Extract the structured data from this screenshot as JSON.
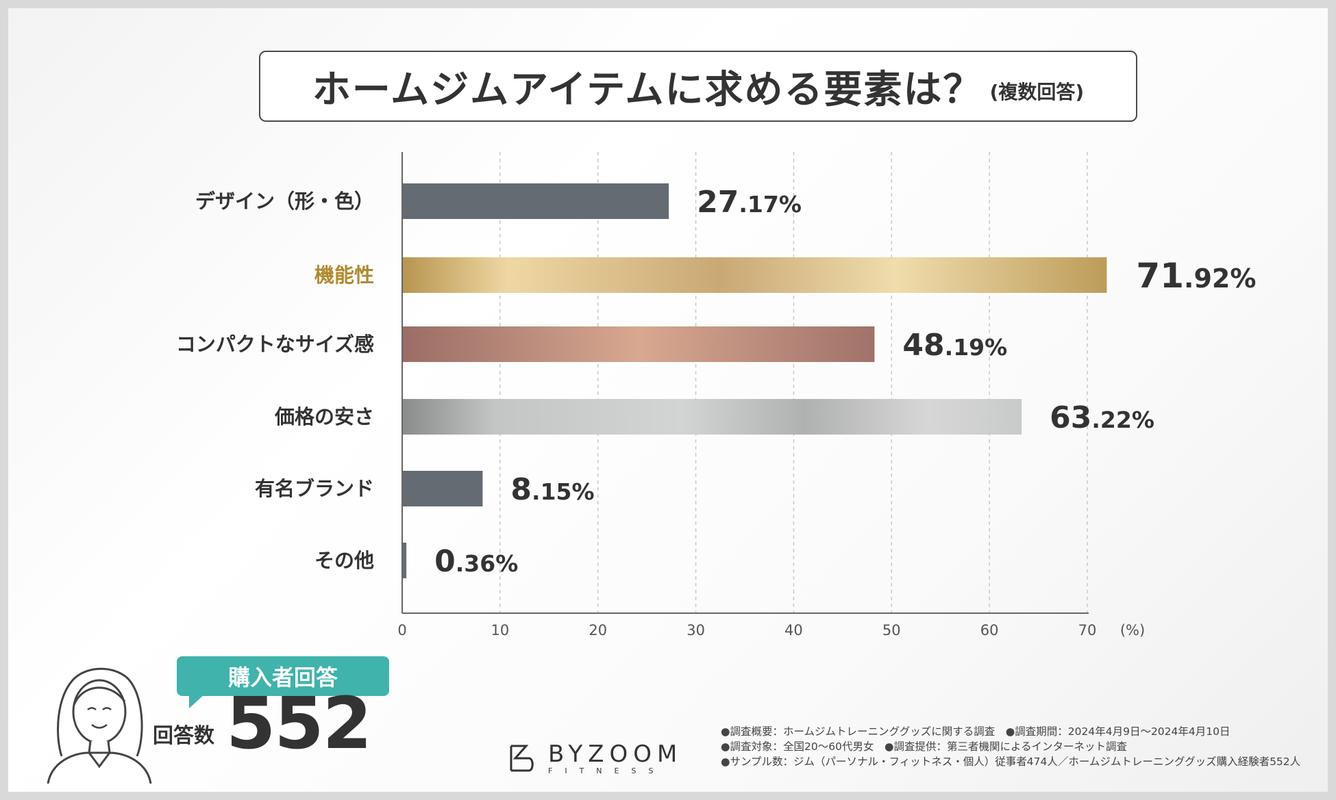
{
  "title": {
    "main": "ホームジムアイテムに求める要素は？",
    "sub": "(複数回答)"
  },
  "chart_data": {
    "type": "bar",
    "orientation": "horizontal",
    "categories": [
      "デザイン（形・色）",
      "機能性",
      "コンパクトなサイズ感",
      "価格の安さ",
      "有名ブランド",
      "その他"
    ],
    "values": [
      27.17,
      71.92,
      48.19,
      63.22,
      8.15,
      0.36
    ],
    "value_labels": [
      {
        "int": "27",
        "dec": ".17%"
      },
      {
        "int": "71",
        "dec": ".92%"
      },
      {
        "int": "48",
        "dec": ".19%"
      },
      {
        "int": "63",
        "dec": ".22%"
      },
      {
        "int": "8",
        "dec": ".15%"
      },
      {
        "int": "0",
        "dec": ".36%"
      }
    ],
    "highlight_index": 1,
    "bar_styles": [
      "slate",
      "gold",
      "rose",
      "silver",
      "slate",
      "slate"
    ],
    "x_ticks": [
      0,
      10,
      20,
      30,
      40,
      50,
      60,
      70
    ],
    "x_unit": "(%)",
    "xlim": [
      0,
      70
    ],
    "grid": "vertical-dashed"
  },
  "colors": {
    "slate": "#646b72",
    "gold_light": "#efd7a3",
    "gold_dark": "#bd9c5a",
    "rose_light": "#d8a890",
    "rose_dark": "#a0726a",
    "silver_light": "#d3d4d4",
    "silver_dark": "#8a8b8b",
    "highlight_text": "#b08a2e",
    "accent": "#3fb3ac"
  },
  "respondents": {
    "badge": "購入者回答",
    "count_label": "回答数",
    "count": "552"
  },
  "logo": {
    "name": "BYZOOM",
    "sub": "FITNESS"
  },
  "notes": [
    "●調査概要：ホームジムトレーニンググッズに関する調査　●調査期間：2024年4月9日〜2024年4月10日",
    "●調査対象：全国20〜60代男女　●調査提供：第三者機関によるインターネット調査",
    "●サンプル数：ジム（パーソナル・フィットネス・個人）従事者474人／ホームジムトレーニンググッズ購入経験者552人"
  ]
}
